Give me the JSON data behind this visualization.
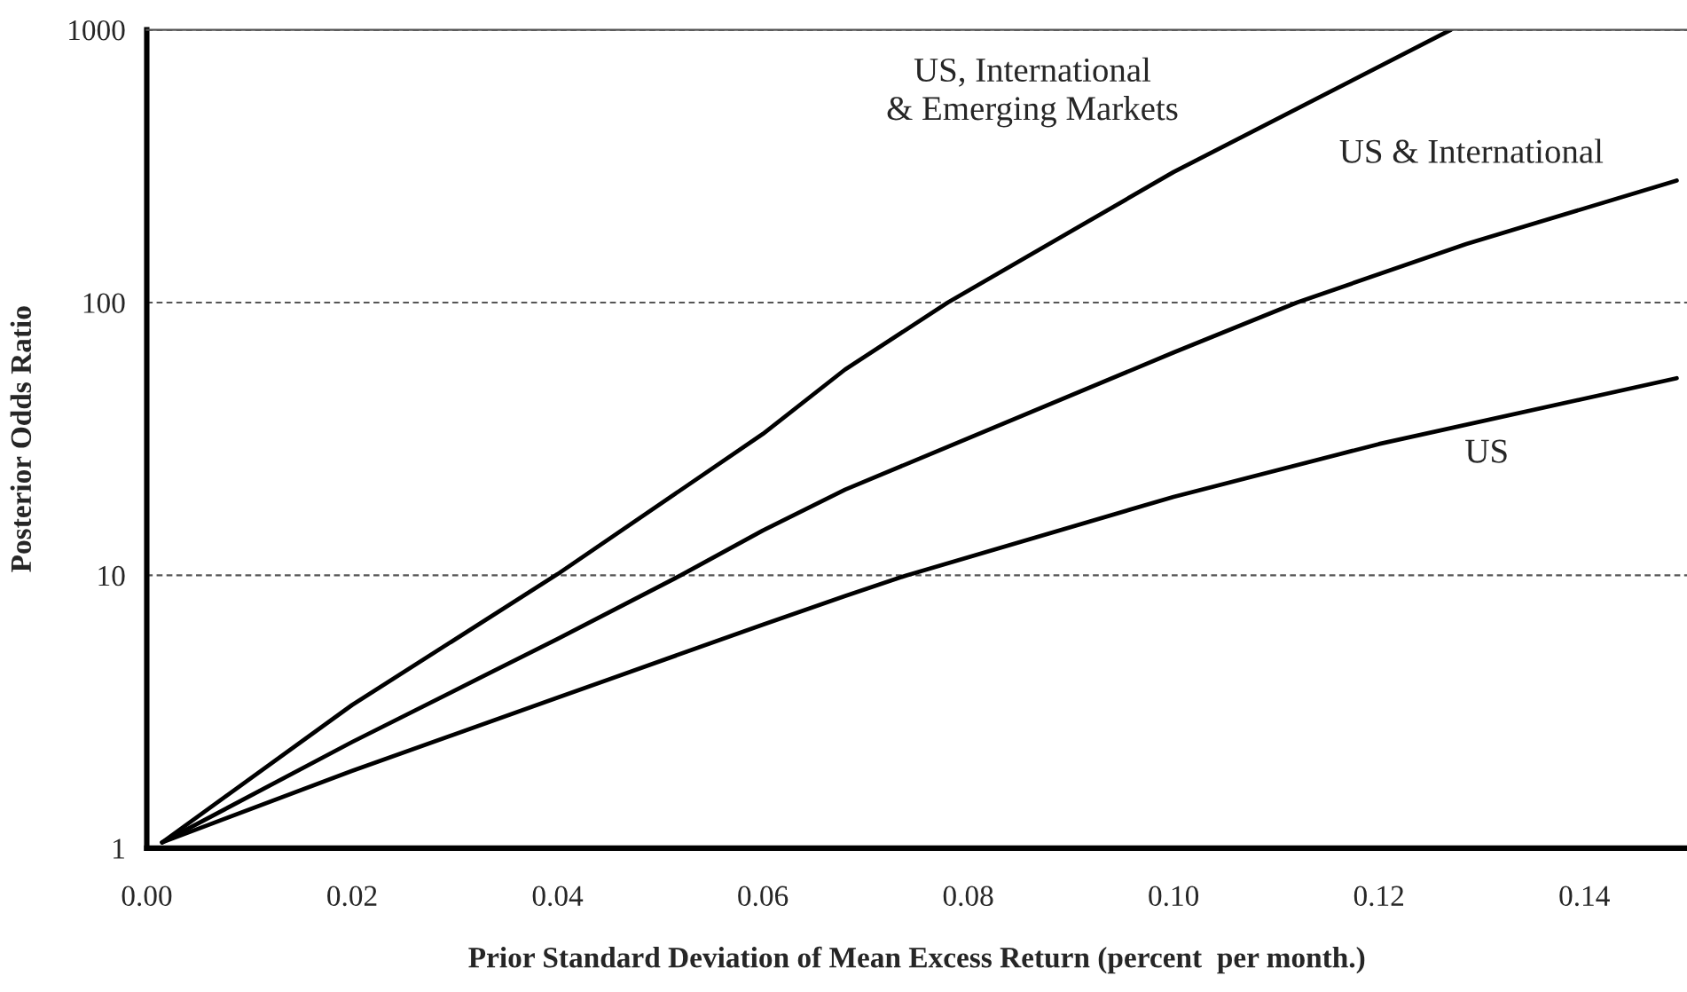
{
  "chart_data": {
    "type": "line",
    "xlabel": "Prior Standard Deviation of Mean Excess Return (percent  per month.)",
    "ylabel": "Posterior Odds Ratio",
    "xlim": [
      0,
      0.15
    ],
    "xticks": [
      {
        "value": 0,
        "label": "0.00"
      },
      {
        "value": 0.02,
        "label": "0.02"
      },
      {
        "value": 0.04,
        "label": "0.04"
      },
      {
        "value": 0.06,
        "label": "0.06"
      },
      {
        "value": 0.08,
        "label": "0.08"
      },
      {
        "value": 0.1,
        "label": "0.10"
      },
      {
        "value": 0.12,
        "label": "0.12"
      },
      {
        "value": 0.14,
        "label": "0.14"
      }
    ],
    "ylim": [
      1,
      1000
    ],
    "yticks": [
      1,
      10,
      100,
      1000
    ],
    "log": "y",
    "grid": "y",
    "legend": false,
    "marker": "none",
    "line_style": "solid",
    "series": [
      {
        "name": "US",
        "color": "#000000",
        "x": [
          0.0015,
          0.02,
          0.04,
          0.06,
          0.068,
          0.074,
          0.1,
          0.12,
          0.149
        ],
        "values": [
          1.05,
          1.92,
          3.56,
          6.6,
          8.4,
          10,
          19.4,
          30.3,
          52.8
        ]
      },
      {
        "name": "US & International",
        "color": "#000000",
        "x": [
          0.0015,
          0.02,
          0.04,
          0.052,
          0.06,
          0.068,
          0.1,
          0.112,
          0.1285,
          0.149
        ],
        "values": [
          1.05,
          2.45,
          5.85,
          10,
          14.6,
          20.6,
          65.6,
          100,
          164,
          280
        ]
      },
      {
        "name": "US, International\n& Emerging Markets",
        "color": "#000000",
        "x": [
          0.0015,
          0.02,
          0.04,
          0.06,
          0.068,
          0.078,
          0.1,
          0.127
        ],
        "values": [
          1.05,
          3.35,
          10.1,
          33,
          56.8,
          100,
          301,
          1000
        ]
      }
    ]
  }
}
